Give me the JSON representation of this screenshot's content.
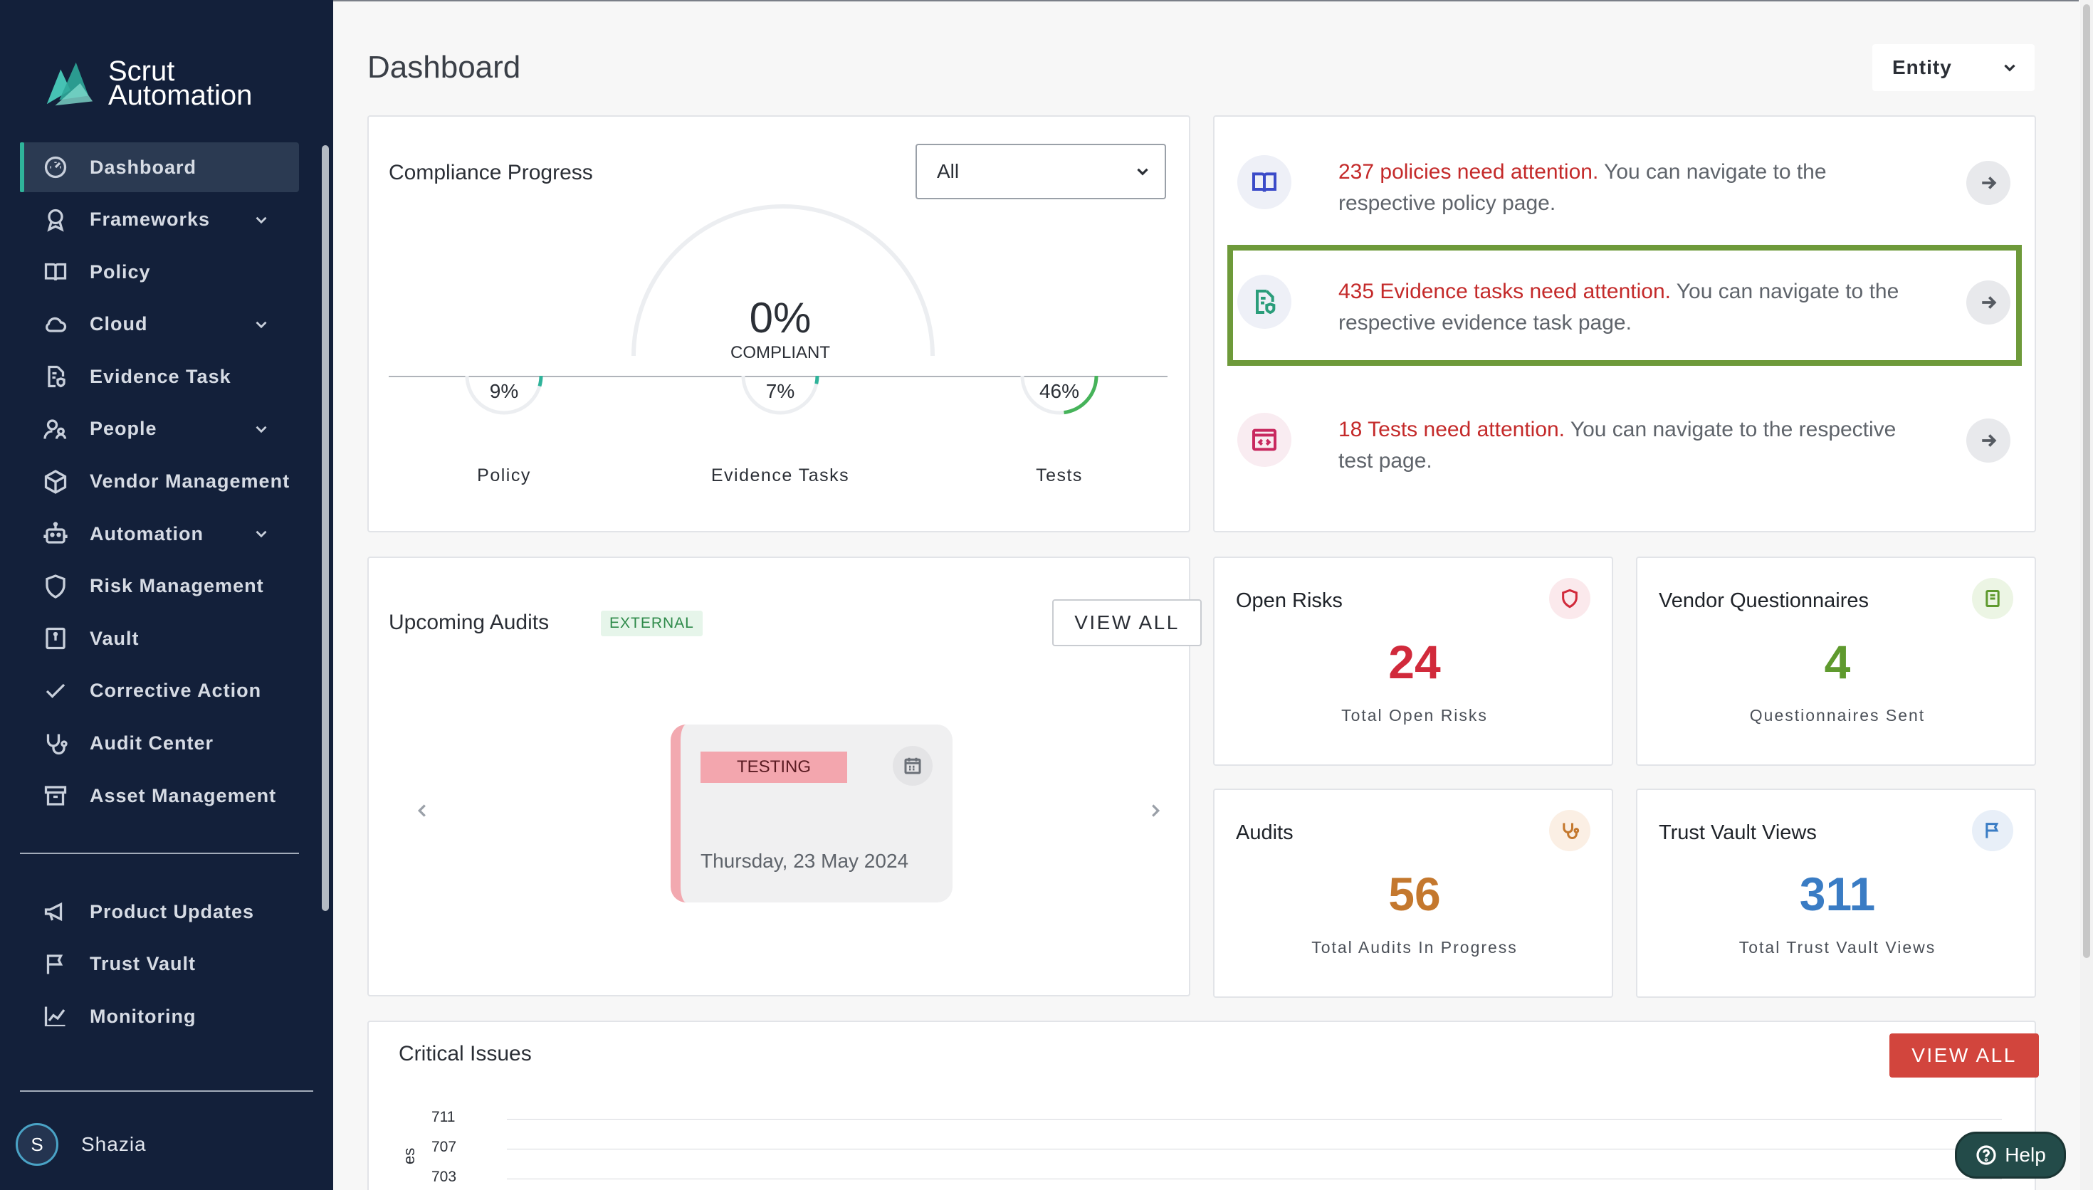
{
  "app": {
    "logo_line1": "Scrut",
    "logo_line2": "Automation"
  },
  "sidebar": {
    "items": [
      {
        "label": "Dashboard",
        "icon": "dashboard-icon",
        "active": true
      },
      {
        "label": "Frameworks",
        "icon": "award-icon",
        "has_chevron": true
      },
      {
        "label": "Policy",
        "icon": "book-icon"
      },
      {
        "label": "Cloud",
        "icon": "cloud-icon",
        "has_chevron": true
      },
      {
        "label": "Evidence Task",
        "icon": "file-shield-icon"
      },
      {
        "label": "People",
        "icon": "people-icon",
        "has_chevron": true
      },
      {
        "label": "Vendor Management",
        "icon": "box-icon"
      },
      {
        "label": "Automation",
        "icon": "robot-icon",
        "has_chevron": true
      },
      {
        "label": "Risk Management",
        "icon": "shield-icon"
      },
      {
        "label": "Vault",
        "icon": "vault-icon"
      },
      {
        "label": "Corrective Action",
        "icon": "check-icon"
      },
      {
        "label": "Audit Center",
        "icon": "stethoscope-icon"
      },
      {
        "label": "Asset Management",
        "icon": "archive-icon"
      }
    ],
    "secondary_items": [
      {
        "label": "Product Updates",
        "icon": "megaphone-icon"
      },
      {
        "label": "Trust Vault",
        "icon": "flag-icon"
      },
      {
        "label": "Monitoring",
        "icon": "chart-line-icon"
      }
    ],
    "user": {
      "initial": "S",
      "name": "Shazia"
    }
  },
  "header": {
    "title": "Dashboard",
    "entity_label": "Entity"
  },
  "compliance": {
    "title": "Compliance Progress",
    "filter_value": "All",
    "overall_pct": "0%",
    "overall_label": "COMPLIANT",
    "overall_fraction": 0,
    "items": [
      {
        "pct": "9%",
        "label": "Policy",
        "fraction": 0.09,
        "color": "#2fb39a"
      },
      {
        "pct": "7%",
        "label": "Evidence Tasks",
        "fraction": 0.07,
        "color": "#2fb39a"
      },
      {
        "pct": "46%",
        "label": "Tests",
        "fraction": 0.46,
        "color": "#46b35a"
      }
    ]
  },
  "attention": [
    {
      "highlight_text": "237 policies need attention.",
      "rest_text": " You can navigate to the respective policy page.",
      "icon": "book-open-icon",
      "icon_color": "#3b4bc8"
    },
    {
      "highlight_text": "435 Evidence tasks need attention.",
      "rest_text": " You can navigate to the respective evidence task page.",
      "icon": "file-shield-icon",
      "icon_color": "#2a9d7a"
    },
    {
      "highlight_text": "18 Tests need attention.",
      "rest_text": " You can navigate to the respective test page.",
      "icon": "code-window-icon",
      "icon_color": "#c8295f"
    }
  ],
  "audits": {
    "title": "Upcoming Audits",
    "badge": "EXTERNAL",
    "view_all": "VIEW ALL",
    "card": {
      "status": "TESTING",
      "date": "Thursday, 23 May 2024"
    }
  },
  "stats": [
    {
      "title": "Open Risks",
      "value": "24",
      "label": "Total Open Risks",
      "color": "#d12a3b",
      "icon": "shield-icon",
      "icon_bg": "#fbe9ec"
    },
    {
      "title": "Vendor Questionnaires",
      "value": "4",
      "label": "Questionnaires Sent",
      "color": "#5f9a2e",
      "icon": "document-icon",
      "icon_bg": "#ecf5e4"
    },
    {
      "title": "Audits",
      "value": "56",
      "label": "Total Audits In Progress",
      "color": "#c4782e",
      "icon": "stethoscope-icon",
      "icon_bg": "#fbefe4"
    },
    {
      "title": "Trust Vault Views",
      "value": "311",
      "label": "Total Trust Vault Views",
      "color": "#3a7cc4",
      "icon": "flag-icon",
      "icon_bg": "#e8eff8"
    }
  ],
  "critical": {
    "title": "Critical Issues",
    "view_all": "VIEW ALL",
    "y_ticks": [
      "711",
      "707",
      "703"
    ],
    "y_label_fragment": "es"
  },
  "help": {
    "label": "Help"
  }
}
